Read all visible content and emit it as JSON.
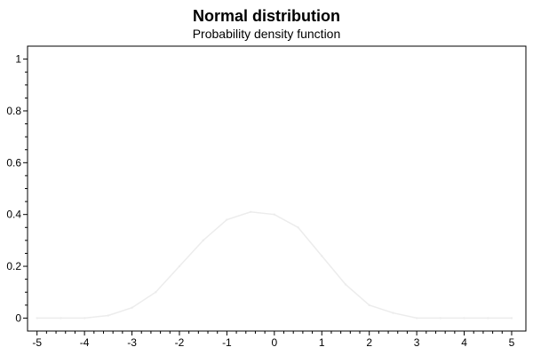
{
  "chart_data": {
    "type": "line",
    "title": "Normal distribution",
    "subtitle": "Probability density function",
    "xlabel": "",
    "ylabel": "",
    "xlim": [
      -5.2,
      5.3
    ],
    "ylim": [
      -0.05,
      1.05
    ],
    "x_ticks": [
      -5,
      -4,
      -3,
      -2,
      -1,
      0,
      1,
      2,
      3,
      4,
      5
    ],
    "x_tick_labels": [
      "-5",
      "-4",
      "-3",
      "-2",
      "-1",
      "0",
      "1",
      "2",
      "3",
      "4",
      "5"
    ],
    "y_ticks": [
      0,
      0.2,
      0.4,
      0.6,
      0.8,
      1
    ],
    "y_tick_labels": [
      "0",
      "0.2",
      "0.4",
      "0.6",
      "0.8",
      "1"
    ],
    "grid": false,
    "legend": "none",
    "series": [
      {
        "color": "#ececec",
        "x": [
          -5,
          -4.5,
          -4,
          -3.5,
          -3,
          -2.5,
          -2,
          -1.5,
          -1,
          -0.5,
          0,
          0.5,
          1,
          1.5,
          2,
          2.5,
          3,
          3.5,
          4,
          4.5,
          5
        ],
        "values": [
          0,
          0,
          0,
          0.01,
          0.04,
          0.1,
          0.2,
          0.3,
          0.38,
          0.41,
          0.4,
          0.35,
          0.24,
          0.13,
          0.05,
          0.02,
          0,
          0,
          0,
          0,
          0
        ]
      }
    ]
  }
}
